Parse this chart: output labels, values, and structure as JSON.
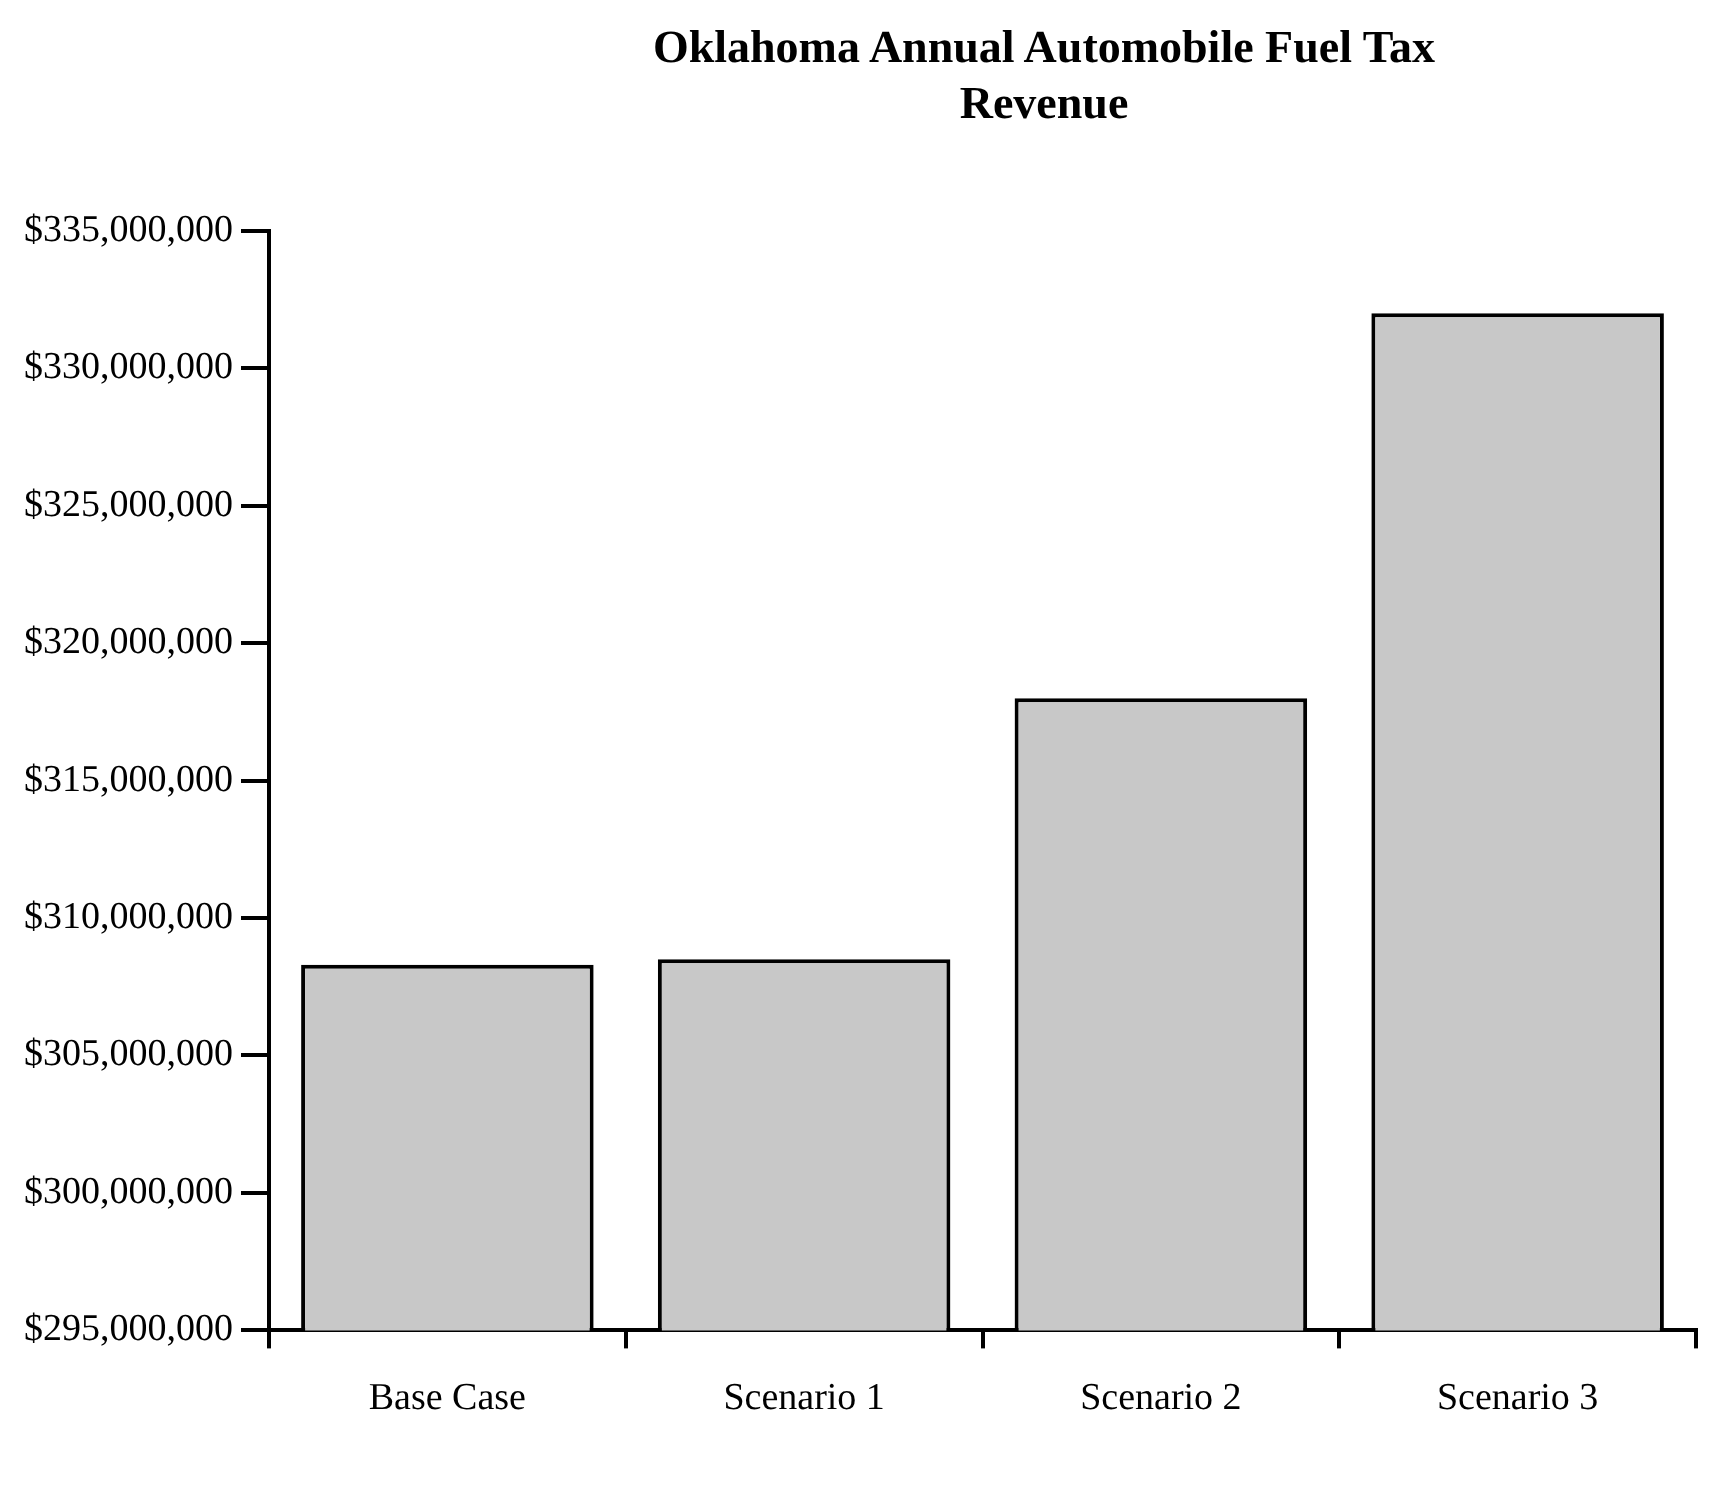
{
  "chart_data": {
    "type": "bar",
    "title": "Oklahoma Annual Automobile Fuel Tax Revenue",
    "categories": [
      "Base Case",
      "Scenario 1",
      "Scenario 2",
      "Scenario 3"
    ],
    "values": [
      308300000,
      308500000,
      318000000,
      332000000
    ],
    "color": "#c8c8c8",
    "ylim": [
      295000000,
      335000000
    ],
    "yticks": [
      {
        "value": 295000000,
        "label": "$295,000,000"
      },
      {
        "value": 300000000,
        "label": "$300,000,000"
      },
      {
        "value": 305000000,
        "label": "$305,000,000"
      },
      {
        "value": 310000000,
        "label": "$310,000,000"
      },
      {
        "value": 315000000,
        "label": "$315,000,000"
      },
      {
        "value": 320000000,
        "label": "$320,000,000"
      },
      {
        "value": 325000000,
        "label": "$325,000,000"
      },
      {
        "value": 330000000,
        "label": "$330,000,000"
      },
      {
        "value": 335000000,
        "label": "$335,000,000"
      }
    ],
    "grid": false,
    "legend": false
  }
}
